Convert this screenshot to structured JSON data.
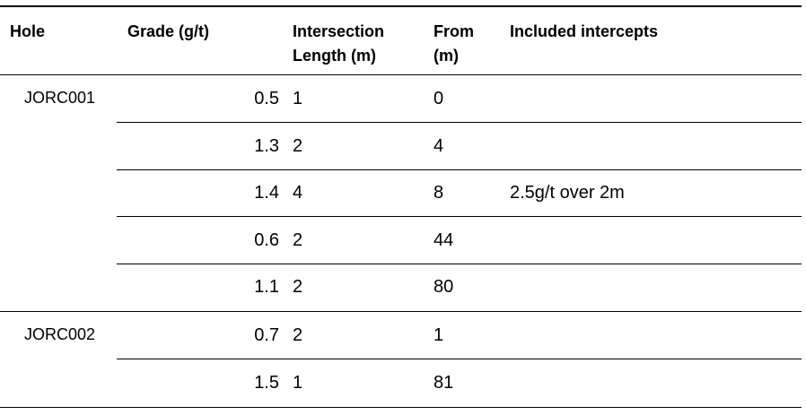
{
  "headers": {
    "hole": "Hole",
    "grade": "Grade (g/t)",
    "length_line1": "Intersection",
    "length_line2": "Length (m)",
    "from_line1": "From",
    "from_line2": "(m)",
    "included": "Included intercepts"
  },
  "holes": [
    {
      "name": "JORC001",
      "rows": [
        {
          "grade": "0.5",
          "length": "1",
          "from": "0",
          "included": ""
        },
        {
          "grade": "1.3",
          "length": "2",
          "from": "4",
          "included": ""
        },
        {
          "grade": "1.4",
          "length": "4",
          "from": "8",
          "included": "2.5g/t over 2m"
        },
        {
          "grade": "0.6",
          "length": "2",
          "from": "44",
          "included": ""
        },
        {
          "grade": "1.1",
          "length": "2",
          "from": "80",
          "included": ""
        }
      ]
    },
    {
      "name": "JORC002",
      "rows": [
        {
          "grade": "0.7",
          "length": "2",
          "from": "1",
          "included": ""
        },
        {
          "grade": "1.5",
          "length": "1",
          "from": "81",
          "included": ""
        }
      ]
    }
  ]
}
